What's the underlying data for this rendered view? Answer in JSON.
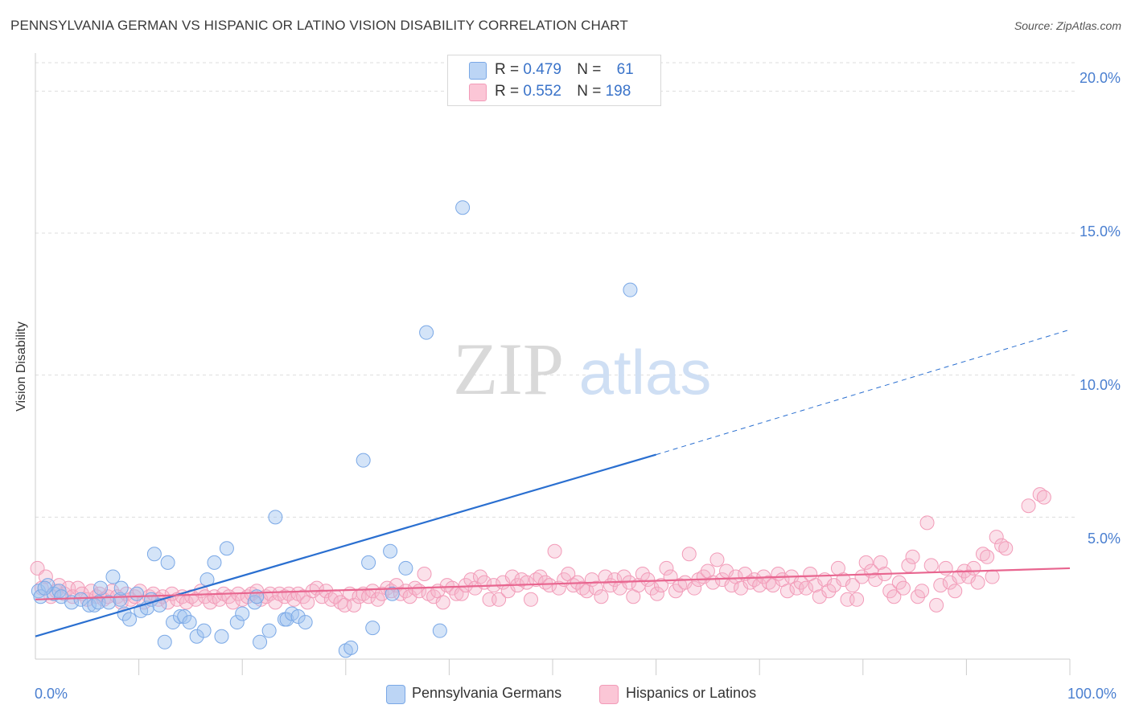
{
  "header": {
    "title": "PENNSYLVANIA GERMAN VS HISPANIC OR LATINO VISION DISABILITY CORRELATION CHART",
    "source": "Source: ZipAtlas.com"
  },
  "legend": {
    "row1": {
      "r_label": "R =",
      "r_value": "0.479",
      "n_label": "N =",
      "n_value": "61"
    },
    "row2": {
      "r_label": "R =",
      "r_value": "0.552",
      "n_label": "N =",
      "n_value": "198"
    }
  },
  "bottom_legend": {
    "series1": "Pennsylvania Germans",
    "series2": "Hispanics or Latinos"
  },
  "axis": {
    "ylabel": "Vision Disability",
    "x_min_label": "0.0%",
    "x_max_label": "100.0%",
    "y_ticks": [
      "5.0%",
      "10.0%",
      "15.0%",
      "20.0%"
    ]
  },
  "watermark": {
    "part1": "ZIP",
    "part2": "atlas"
  },
  "colors": {
    "blue": "#7aa8e6",
    "blue_line": "#2a6fd0",
    "pink": "#f29bb8",
    "pink_line": "#e8658f",
    "tick": "#4a7fd0"
  },
  "chart_data": {
    "type": "scatter",
    "title": "PENNSYLVANIA GERMAN VS HISPANIC OR LATINO VISION DISABILITY CORRELATION CHART",
    "xlabel": "",
    "ylabel": "Vision Disability",
    "xlim": [
      0,
      100
    ],
    "ylim": [
      0,
      21
    ],
    "x_ticks": [
      0,
      100
    ],
    "y_ticks": [
      5,
      10,
      15,
      20
    ],
    "grid": true,
    "legend_placement": "top-center",
    "series": [
      {
        "name": "Pennsylvania Germans",
        "color": "#7aa8e6",
        "r": 0.479,
        "n": 61,
        "trend": {
          "x0": 0,
          "y0": 0.8,
          "x1": 60,
          "y1": 7.2,
          "dashed_to_x": 100,
          "dashed_to_y": 11.6
        },
        "points": [
          [
            0.3,
            2.4
          ],
          [
            0.5,
            2.2
          ],
          [
            1.2,
            2.6
          ],
          [
            1.8,
            2.3
          ],
          [
            2.3,
            2.4
          ],
          [
            2.5,
            2.2
          ],
          [
            3.5,
            2.0
          ],
          [
            4.4,
            2.1
          ],
          [
            5.2,
            1.9
          ],
          [
            5.7,
            1.9
          ],
          [
            6.1,
            2.0
          ],
          [
            6.3,
            2.5
          ],
          [
            7.1,
            2.0
          ],
          [
            7.5,
            2.9
          ],
          [
            8.2,
            2.1
          ],
          [
            8.3,
            2.5
          ],
          [
            8.6,
            1.6
          ],
          [
            9.1,
            1.4
          ],
          [
            9.8,
            2.3
          ],
          [
            10.2,
            1.7
          ],
          [
            10.8,
            1.8
          ],
          [
            11.2,
            2.1
          ],
          [
            11.5,
            3.7
          ],
          [
            12.0,
            1.9
          ],
          [
            12.5,
            0.6
          ],
          [
            12.8,
            3.4
          ],
          [
            13.3,
            1.3
          ],
          [
            14.0,
            1.5
          ],
          [
            14.4,
            1.5
          ],
          [
            14.9,
            1.3
          ],
          [
            15.6,
            0.8
          ],
          [
            16.3,
            1.0
          ],
          [
            16.6,
            2.8
          ],
          [
            17.3,
            3.4
          ],
          [
            18.0,
            0.8
          ],
          [
            18.5,
            3.9
          ],
          [
            19.5,
            1.3
          ],
          [
            20.0,
            1.6
          ],
          [
            21.2,
            2.0
          ],
          [
            21.4,
            2.2
          ],
          [
            21.7,
            0.6
          ],
          [
            22.6,
            1.0
          ],
          [
            23.2,
            5.0
          ],
          [
            24.1,
            1.4
          ],
          [
            24.3,
            1.4
          ],
          [
            24.8,
            1.6
          ],
          [
            25.4,
            1.5
          ],
          [
            26.1,
            1.3
          ],
          [
            30.0,
            0.3
          ],
          [
            30.5,
            0.4
          ],
          [
            31.7,
            7.0
          ],
          [
            32.2,
            3.4
          ],
          [
            32.6,
            1.1
          ],
          [
            34.3,
            3.8
          ],
          [
            34.5,
            2.3
          ],
          [
            35.8,
            3.2
          ],
          [
            37.8,
            11.5
          ],
          [
            39.1,
            1.0
          ],
          [
            41.3,
            15.9
          ],
          [
            57.5,
            13.0
          ],
          [
            0.9,
            2.5
          ]
        ]
      },
      {
        "name": "Hispanics or Latinos",
        "color": "#f29bb8",
        "r": 0.552,
        "n": 198,
        "trend": {
          "x0": 0,
          "y0": 2.1,
          "x1": 100,
          "y1": 3.2
        },
        "points": [
          [
            0.2,
            3.2
          ],
          [
            0.6,
            2.5
          ],
          [
            1.0,
            2.9
          ],
          [
            1.5,
            2.2
          ],
          [
            2.0,
            2.4
          ],
          [
            2.3,
            2.6
          ],
          [
            2.8,
            2.3
          ],
          [
            3.2,
            2.5
          ],
          [
            3.6,
            2.2
          ],
          [
            4.1,
            2.5
          ],
          [
            4.5,
            2.3
          ],
          [
            5.0,
            2.1
          ],
          [
            5.4,
            2.4
          ],
          [
            5.9,
            2.2
          ],
          [
            6.2,
            2.3
          ],
          [
            6.6,
            2.1
          ],
          [
            7.0,
            2.2
          ],
          [
            7.4,
            2.4
          ],
          [
            7.9,
            2.2
          ],
          [
            8.3,
            2.0
          ],
          [
            8.8,
            2.3
          ],
          [
            9.2,
            2.1
          ],
          [
            9.6,
            2.2
          ],
          [
            10.1,
            2.4
          ],
          [
            10.5,
            2.0
          ],
          [
            11.0,
            2.2
          ],
          [
            11.4,
            2.3
          ],
          [
            11.9,
            2.1
          ],
          [
            12.3,
            2.2
          ],
          [
            12.8,
            2.0
          ],
          [
            13.2,
            2.3
          ],
          [
            13.7,
            2.1
          ],
          [
            14.2,
            2.2
          ],
          [
            14.6,
            2.0
          ],
          [
            15.1,
            2.2
          ],
          [
            15.5,
            2.1
          ],
          [
            16.0,
            2.4
          ],
          [
            16.4,
            2.2
          ],
          [
            16.9,
            2.0
          ],
          [
            17.3,
            2.2
          ],
          [
            17.8,
            2.1
          ],
          [
            18.2,
            2.3
          ],
          [
            18.7,
            2.2
          ],
          [
            19.1,
            2.0
          ],
          [
            19.6,
            2.3
          ],
          [
            20.0,
            2.1
          ],
          [
            20.5,
            2.2
          ],
          [
            20.9,
            2.3
          ],
          [
            21.4,
            2.4
          ],
          [
            21.8,
            2.1
          ],
          [
            22.3,
            2.2
          ],
          [
            22.7,
            2.3
          ],
          [
            23.2,
            2.0
          ],
          [
            23.6,
            2.3
          ],
          [
            24.1,
            2.2
          ],
          [
            24.5,
            2.3
          ],
          [
            25.0,
            2.1
          ],
          [
            25.4,
            2.3
          ],
          [
            25.9,
            2.2
          ],
          [
            26.3,
            2.0
          ],
          [
            26.8,
            2.4
          ],
          [
            27.2,
            2.5
          ],
          [
            27.7,
            2.2
          ],
          [
            28.1,
            2.4
          ],
          [
            28.6,
            2.1
          ],
          [
            29.0,
            2.2
          ],
          [
            29.5,
            2.0
          ],
          [
            29.9,
            1.9
          ],
          [
            30.4,
            2.3
          ],
          [
            30.8,
            1.9
          ],
          [
            31.3,
            2.2
          ],
          [
            31.7,
            2.3
          ],
          [
            32.2,
            2.2
          ],
          [
            32.6,
            2.4
          ],
          [
            33.1,
            2.1
          ],
          [
            33.5,
            2.3
          ],
          [
            34.0,
            2.5
          ],
          [
            34.4,
            2.4
          ],
          [
            34.9,
            2.6
          ],
          [
            35.3,
            2.3
          ],
          [
            35.8,
            2.4
          ],
          [
            36.2,
            2.2
          ],
          [
            36.7,
            2.5
          ],
          [
            37.1,
            2.4
          ],
          [
            37.6,
            3.0
          ],
          [
            38.0,
            2.3
          ],
          [
            38.5,
            2.2
          ],
          [
            38.9,
            2.4
          ],
          [
            39.4,
            2.0
          ],
          [
            39.8,
            2.6
          ],
          [
            40.3,
            2.5
          ],
          [
            40.7,
            2.3
          ],
          [
            41.2,
            2.3
          ],
          [
            41.6,
            2.6
          ],
          [
            42.1,
            2.8
          ],
          [
            42.5,
            2.5
          ],
          [
            43.0,
            2.9
          ],
          [
            43.4,
            2.7
          ],
          [
            43.9,
            2.1
          ],
          [
            44.3,
            2.6
          ],
          [
            44.8,
            2.1
          ],
          [
            45.2,
            2.7
          ],
          [
            45.7,
            2.4
          ],
          [
            46.1,
            2.9
          ],
          [
            46.6,
            2.6
          ],
          [
            47.0,
            2.8
          ],
          [
            47.5,
            2.7
          ],
          [
            47.9,
            2.1
          ],
          [
            48.4,
            2.8
          ],
          [
            48.8,
            2.9
          ],
          [
            49.3,
            2.7
          ],
          [
            49.7,
            2.6
          ],
          [
            50.2,
            3.8
          ],
          [
            50.6,
            2.5
          ],
          [
            51.1,
            2.8
          ],
          [
            51.5,
            3.0
          ],
          [
            52.0,
            2.6
          ],
          [
            52.4,
            2.7
          ],
          [
            52.9,
            2.5
          ],
          [
            53.3,
            2.4
          ],
          [
            53.8,
            2.8
          ],
          [
            54.2,
            2.5
          ],
          [
            54.7,
            2.2
          ],
          [
            55.1,
            2.9
          ],
          [
            55.6,
            2.6
          ],
          [
            56.0,
            2.8
          ],
          [
            56.5,
            2.5
          ],
          [
            56.9,
            2.9
          ],
          [
            57.4,
            2.7
          ],
          [
            57.8,
            2.2
          ],
          [
            58.3,
            2.6
          ],
          [
            58.7,
            3.0
          ],
          [
            59.2,
            2.8
          ],
          [
            59.6,
            2.5
          ],
          [
            60.1,
            2.3
          ],
          [
            60.5,
            2.6
          ],
          [
            61.0,
            3.2
          ],
          [
            61.4,
            2.9
          ],
          [
            61.9,
            2.4
          ],
          [
            62.3,
            2.6
          ],
          [
            62.8,
            2.7
          ],
          [
            63.2,
            3.7
          ],
          [
            63.7,
            2.5
          ],
          [
            64.1,
            2.8
          ],
          [
            64.6,
            2.9
          ],
          [
            65.0,
            3.1
          ],
          [
            65.5,
            2.7
          ],
          [
            65.9,
            3.5
          ],
          [
            66.4,
            2.8
          ],
          [
            66.8,
            3.1
          ],
          [
            67.3,
            2.6
          ],
          [
            67.7,
            2.9
          ],
          [
            68.2,
            2.5
          ],
          [
            68.6,
            3.0
          ],
          [
            69.1,
            2.7
          ],
          [
            69.5,
            2.8
          ],
          [
            70.0,
            2.6
          ],
          [
            70.4,
            2.9
          ],
          [
            70.9,
            2.7
          ],
          [
            71.3,
            2.6
          ],
          [
            71.8,
            3.0
          ],
          [
            72.2,
            2.8
          ],
          [
            72.7,
            2.4
          ],
          [
            73.1,
            2.9
          ],
          [
            73.6,
            2.5
          ],
          [
            74.0,
            2.7
          ],
          [
            74.5,
            2.5
          ],
          [
            74.9,
            3.0
          ],
          [
            75.4,
            2.6
          ],
          [
            75.8,
            2.2
          ],
          [
            76.3,
            2.8
          ],
          [
            76.7,
            2.4
          ],
          [
            77.2,
            2.6
          ],
          [
            77.6,
            3.2
          ],
          [
            78.1,
            2.8
          ],
          [
            78.5,
            2.1
          ],
          [
            79.0,
            2.6
          ],
          [
            79.4,
            2.1
          ],
          [
            79.9,
            2.9
          ],
          [
            80.3,
            3.4
          ],
          [
            80.8,
            3.1
          ],
          [
            81.2,
            2.8
          ],
          [
            81.7,
            3.4
          ],
          [
            82.1,
            3.0
          ],
          [
            82.6,
            2.4
          ],
          [
            83.0,
            2.2
          ],
          [
            83.5,
            2.7
          ],
          [
            83.9,
            2.5
          ],
          [
            84.4,
            3.3
          ],
          [
            84.8,
            3.6
          ],
          [
            85.3,
            2.2
          ],
          [
            85.7,
            2.4
          ],
          [
            86.2,
            4.8
          ],
          [
            86.6,
            3.3
          ],
          [
            87.1,
            1.9
          ],
          [
            87.5,
            2.6
          ],
          [
            88.0,
            3.2
          ],
          [
            88.4,
            2.7
          ],
          [
            88.9,
            2.4
          ],
          [
            89.3,
            2.9
          ],
          [
            89.8,
            3.1
          ],
          [
            90.2,
            2.9
          ],
          [
            90.7,
            3.2
          ],
          [
            91.1,
            2.7
          ],
          [
            91.6,
            3.7
          ],
          [
            92.0,
            3.6
          ],
          [
            92.5,
            2.9
          ],
          [
            92.9,
            4.3
          ],
          [
            93.4,
            4.0
          ],
          [
            93.8,
            3.9
          ],
          [
            96.0,
            5.4
          ],
          [
            97.1,
            5.8
          ],
          [
            97.5,
            5.7
          ]
        ]
      }
    ]
  }
}
